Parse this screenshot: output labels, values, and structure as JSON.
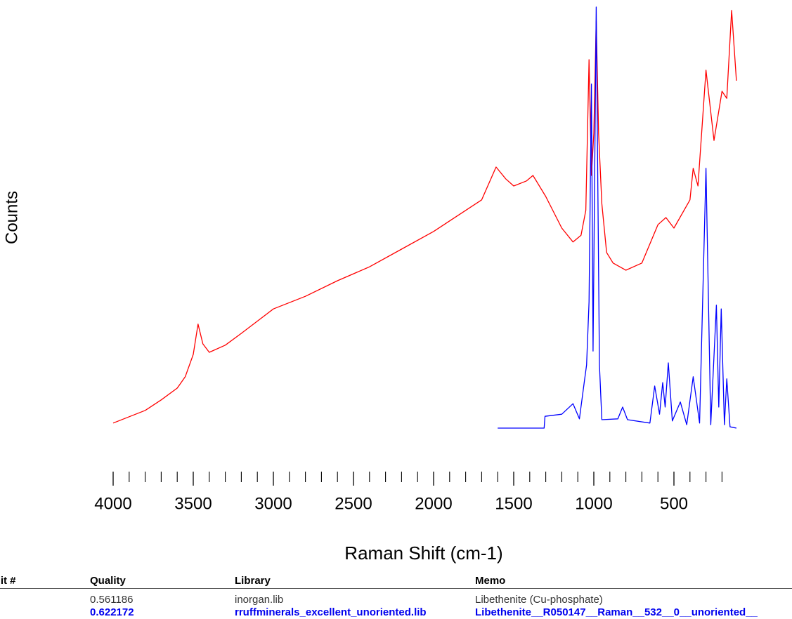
{
  "chart_data": {
    "type": "line",
    "xlabel": "Raman Shift (cm-1)",
    "ylabel": "Counts",
    "xlim": [
      4000,
      100
    ],
    "ylim": [
      0,
      100
    ],
    "xticks": [
      4000,
      3500,
      3000,
      2500,
      2000,
      1500,
      1000,
      500
    ],
    "xminorticks": [
      3900,
      3800,
      3700,
      3600,
      3400,
      3300,
      3200,
      3100,
      2900,
      2800,
      2700,
      2600,
      2400,
      2300,
      2200,
      2100,
      1900,
      1800,
      1700,
      1600,
      1400,
      1300,
      1200,
      1100,
      900,
      800,
      700,
      600,
      400,
      300,
      200
    ],
    "series": [
      {
        "color": "#ff0000",
        "x": [
          4000,
          3800,
          3700,
          3600,
          3550,
          3500,
          3470,
          3440,
          3400,
          3300,
          3200,
          3000,
          2800,
          2600,
          2400,
          2200,
          2000,
          1800,
          1700,
          1610,
          1550,
          1500,
          1420,
          1380,
          1300,
          1200,
          1130,
          1080,
          1050,
          1030,
          1015,
          1000,
          985,
          970,
          950,
          920,
          880,
          800,
          700,
          600,
          550,
          500,
          400,
          380,
          350,
          300,
          250,
          200,
          170,
          140,
          110
        ],
        "values": [
          1.2,
          4.2,
          6.7,
          9.5,
          12.2,
          17.5,
          24.7,
          20,
          18,
          19.7,
          22.5,
          28.3,
          31.3,
          35,
          38.3,
          42.5,
          46.7,
          51.7,
          54.2,
          62,
          59.2,
          57.5,
          58.7,
          60,
          55,
          47.5,
          44.2,
          45.8,
          51.7,
          87.5,
          60,
          70,
          96.7,
          70,
          53.3,
          41.7,
          39.2,
          37.5,
          39.2,
          48.3,
          50,
          47.5,
          54.2,
          61.7,
          57.5,
          85,
          68.3,
          80,
          78.3,
          99.2,
          82.5
        ]
      },
      {
        "color": "#0000ff",
        "x": [
          1600,
          1310,
          1305,
          1200,
          1130,
          1090,
          1060,
          1045,
          1030,
          1015,
          1005,
          985,
          965,
          950,
          850,
          820,
          790,
          650,
          620,
          590,
          570,
          555,
          535,
          510,
          460,
          420,
          380,
          340,
          300,
          270,
          235,
          220,
          205,
          185,
          170,
          150,
          110
        ],
        "values": [
          0,
          0,
          2.8,
          3.3,
          5.8,
          2.2,
          10.8,
          15,
          30,
          81.7,
          18.3,
          100,
          15,
          2,
          2.2,
          5,
          2,
          1.2,
          10,
          3.3,
          10.8,
          5,
          15.5,
          1.7,
          6.2,
          0.8,
          12.2,
          1.2,
          61.7,
          0.8,
          29.2,
          5,
          28.3,
          0.8,
          11.7,
          0.3,
          0
        ]
      }
    ]
  },
  "table": {
    "headers": [
      "Hit #",
      "Quality",
      "Library",
      "Memo"
    ],
    "rows": [
      [
        "0.561186",
        "inorgan.lib",
        "Libethenite (Cu-phosphate)"
      ],
      [
        "0.622172",
        "rruffminerals_excellent_unoriented.lib",
        "Libethenite__R050147__Raman__532__0__unoriented__"
      ]
    ]
  }
}
